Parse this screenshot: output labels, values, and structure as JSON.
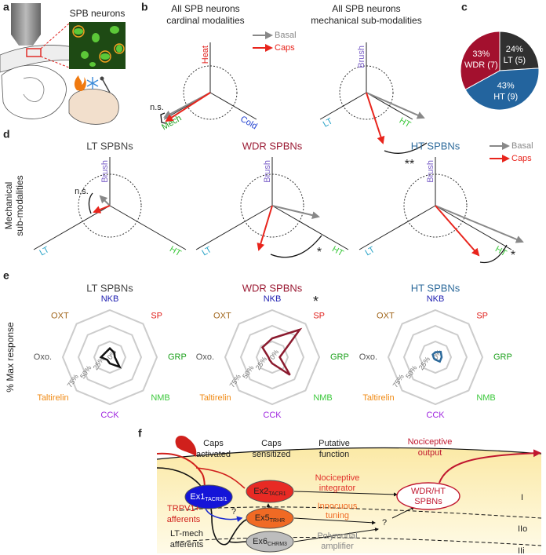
{
  "panel_labels": [
    "a",
    "b",
    "c",
    "d",
    "e",
    "f"
  ],
  "panel_a": {
    "title": "SPB neurons"
  },
  "panel_b": {
    "plots": [
      {
        "title": [
          "All SPB neurons",
          "cardinal modalities"
        ],
        "axes": [
          "Heat",
          "Mech",
          "Cold"
        ],
        "annotation": "n.s."
      },
      {
        "title": [
          "All SPB neurons",
          "mechanical sub-modalities"
        ],
        "axes": [
          "Brush",
          "LT",
          "HT"
        ],
        "annotation": "**"
      }
    ],
    "legend": [
      "Basal",
      "Caps"
    ]
  },
  "panel_d": {
    "ylabel": [
      "Mechanical",
      "sub-modalities"
    ],
    "plots": [
      {
        "title": "LT SPBNs",
        "title_color": "#444444",
        "axes": [
          "Brush",
          "LT",
          "HT"
        ],
        "annotation": "n.s."
      },
      {
        "title": "WDR SPBNs",
        "title_color": "#9b1b34",
        "axes": [
          "Brush",
          "LT",
          "HT"
        ],
        "annotation": "*"
      },
      {
        "title": "HT SPBNs",
        "title_color": "#2d6a9b",
        "axes": [
          "Brush",
          "LT",
          "HT"
        ],
        "annotation": "*"
      }
    ],
    "legend": [
      "Basal",
      "Caps"
    ]
  },
  "panel_e": {
    "ylabel": "% Max response"
  },
  "chart_data": [
    {
      "type": "pie",
      "categories": [
        "LT (5)",
        "HT (9)",
        "WDR (7)"
      ],
      "values": [
        24,
        43,
        33
      ],
      "value_labels": [
        "24%",
        "43%",
        "33%"
      ],
      "colors": [
        "#303030",
        "#23649e",
        "#a3102e"
      ]
    },
    {
      "type": "radar",
      "title": "LT SPBNs",
      "title_color": "#444444",
      "categories": [
        "NKB",
        "SP",
        "GRP",
        "NMB",
        "CCK",
        "Taltirelin",
        "Oxo.",
        "OXT"
      ],
      "category_colors": [
        "#1c1cb0",
        "#e0201c",
        "#1ca01c",
        "#3cc83c",
        "#a028e0",
        "#f08a14",
        "#555555",
        "#a0651b"
      ],
      "rlim": [
        0,
        75
      ],
      "rticks": [
        {
          "value": 0,
          "label": "0%"
        },
        {
          "value": 25,
          "label": "25%"
        },
        {
          "value": 50,
          "label": "50%"
        },
        {
          "value": 75,
          "label": "75%"
        }
      ],
      "series": [
        {
          "color": "#111111",
          "values": [
            14,
            10,
            8,
            22,
            10,
            6,
            14,
            10
          ]
        }
      ]
    },
    {
      "type": "radar",
      "title": "WDR SPBNs",
      "title_color": "#9b1b34",
      "annotation": "*",
      "categories": [
        "NKB",
        "SP",
        "GRP",
        "NMB",
        "CCK",
        "Taltirelin",
        "Oxo.",
        "OXT"
      ],
      "category_colors": [
        "#1c1cb0",
        "#e0201c",
        "#1ca01c",
        "#3cc83c",
        "#a028e0",
        "#f08a14",
        "#555555",
        "#a0651b"
      ],
      "rlim": [
        0,
        75
      ],
      "rticks": [
        {
          "value": 0,
          "label": "0%"
        },
        {
          "value": 25,
          "label": "25%"
        },
        {
          "value": 50,
          "label": "50%"
        },
        {
          "value": 75,
          "label": "75%"
        }
      ],
      "series": [
        {
          "color": "#8b1a2e",
          "values": [
            30,
            62,
            12,
            40,
            10,
            6,
            6,
            22
          ]
        }
      ]
    },
    {
      "type": "radar",
      "title": "HT SPBNs",
      "title_color": "#2d6a9b",
      "categories": [
        "NKB",
        "SP",
        "GRP",
        "NMB",
        "CCK",
        "Taltirelin",
        "Oxo.",
        "OXT"
      ],
      "category_colors": [
        "#1c1cb0",
        "#e0201c",
        "#1ca01c",
        "#3cc83c",
        "#a028e0",
        "#f08a14",
        "#555555",
        "#a0651b"
      ],
      "rlim": [
        0,
        75
      ],
      "rticks": [
        {
          "value": 0,
          "label": "0%"
        },
        {
          "value": 25,
          "label": "25%"
        },
        {
          "value": 50,
          "label": "50%"
        },
        {
          "value": 75,
          "label": "75%"
        }
      ],
      "series": [
        {
          "color": "#2d6a9b",
          "values": [
            8,
            12,
            10,
            10,
            4,
            3,
            3,
            6
          ]
        }
      ]
    }
  ],
  "panel_f": {
    "headers": [
      [
        "Caps",
        "activated"
      ],
      [
        "Caps",
        "sensitized"
      ],
      [
        "Putative",
        "function"
      ],
      [
        "Nociceptive",
        "output"
      ]
    ],
    "afferents": [
      [
        "TRPV1+",
        "afferents"
      ],
      [
        "LT-mech",
        "afferents"
      ]
    ],
    "nodes": [
      {
        "label": "Ex1",
        "sub": "TACR3/1"
      },
      {
        "label": "Ex2",
        "sub": "TACR1"
      },
      {
        "label": "Ex5",
        "sub": "TRHR"
      },
      {
        "label": "Ex6",
        "sub": "CHRM3"
      }
    ],
    "functions": [
      [
        "Nociceptive",
        "integrator"
      ],
      [
        "Innocuous",
        "tuning"
      ],
      [
        "Polymodal",
        "amplifier"
      ]
    ],
    "output_node": [
      "WDR/HT",
      "SPBNs"
    ],
    "laminae": [
      "I",
      "IIo",
      "IIi"
    ],
    "unknown": "?"
  }
}
